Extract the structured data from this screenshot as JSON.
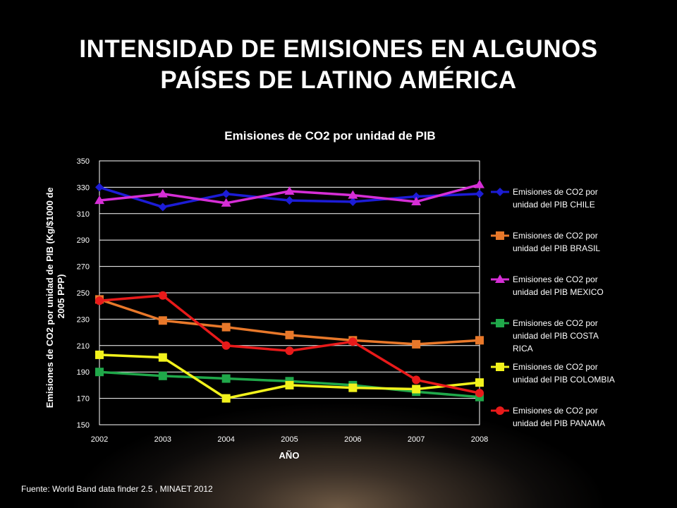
{
  "slide": {
    "title": "INTENSIDAD DE EMISIONES EN ALGUNOS PAÍSES DE LATINO AMÉRICA",
    "source": "Fuente: World Band data finder 2.5 , MINAET 2012"
  },
  "chart_data": {
    "type": "line",
    "title": "Emisiones de CO2 por unidad de PIB",
    "xlabel": "AÑO",
    "ylabel": "Emisiones de CO2  por unidad de PIB (Kg/$1000 de 2005 PPP)",
    "ylabel_lines": [
      "Emisiones de CO2  por unidad de PIB (Kg/$1000 de",
      "2005 PPP)"
    ],
    "x": [
      2002,
      2003,
      2004,
      2005,
      2006,
      2007,
      2008
    ],
    "ylim": [
      150,
      350
    ],
    "yticks": [
      150,
      170,
      190,
      210,
      230,
      250,
      270,
      290,
      310,
      330,
      350
    ],
    "grid": true,
    "legend_position": "right",
    "series": [
      {
        "name": "Emisiones de CO2 por unidad del PIB CHILE",
        "legend_lines": [
          "Emisiones de CO2 por",
          "unidad del PIB CHILE"
        ],
        "color": "#1c1cd6",
        "marker": "diamond",
        "values": [
          330,
          315,
          325,
          320,
          319,
          323,
          325
        ]
      },
      {
        "name": "Emisiones de CO2 por unidad del PIB BRASIL",
        "legend_lines": [
          "Emisiones de CO2 por",
          "unidad del PIB BRASIL"
        ],
        "color": "#e8782a",
        "marker": "square",
        "values": [
          245,
          229,
          224,
          218,
          214,
          211,
          214
        ]
      },
      {
        "name": "Emisiones de CO2 por unidad del PIB MEXICO",
        "legend_lines": [
          "Emisiones de CO2 por",
          "unidad del PIB MEXICO"
        ],
        "color": "#d62ed6",
        "marker": "triangle",
        "values": [
          320,
          325,
          318,
          327,
          324,
          319,
          332
        ]
      },
      {
        "name": "Emisiones de CO2 por unidad del PIB  COSTA RICA",
        "legend_lines": [
          "Emisiones de CO2 por",
          "unidad del PIB  COSTA",
          "RICA"
        ],
        "color": "#20a84a",
        "marker": "square",
        "values": [
          190,
          187,
          185,
          183,
          180,
          175,
          171
        ]
      },
      {
        "name": "Emisiones de CO2 por unidad del PIB  COLOMBIA",
        "legend_lines": [
          "Emisiones de CO2 por",
          "unidad del PIB  COLOMBIA"
        ],
        "color": "#f2f21c",
        "marker": "square",
        "values": [
          203,
          201,
          170,
          180,
          178,
          177,
          182
        ]
      },
      {
        "name": "Emisiones de CO2 por unidad del PIB  PANAMA",
        "legend_lines": [
          "Emisiones de CO2 por",
          "unidad del PIB  PANAMA"
        ],
        "color": "#e81a1a",
        "marker": "circle",
        "values": [
          244,
          248,
          210,
          206,
          213,
          184,
          174
        ]
      }
    ]
  }
}
